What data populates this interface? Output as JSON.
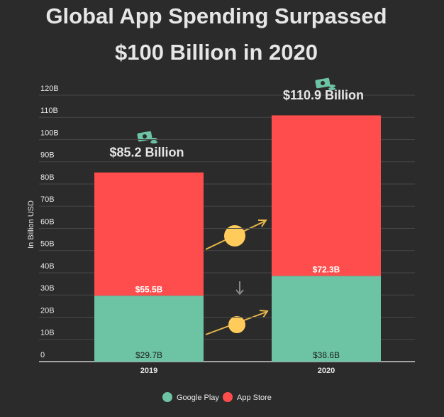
{
  "chart_data": {
    "type": "stacked_bar",
    "title": [
      "Global App Spending Surpassed",
      "$100 Billion in 2020"
    ],
    "y_label": "In Billion USD",
    "categories": [
      "2019",
      "2020"
    ],
    "series": [
      {
        "name": "Google Play",
        "color": "#6cc4a4",
        "values": [
          29.7,
          38.6
        ],
        "value_labels": [
          "$29.7B",
          "$38.6B"
        ]
      },
      {
        "name": "App Store",
        "color": "#ff4d4d",
        "values": [
          55.5,
          72.3
        ],
        "value_labels": [
          "$55.5B",
          "$72.3B"
        ]
      }
    ],
    "annotations": [
      "$85.2 Billion",
      "$110.9 Billion"
    ],
    "ylim": [
      0,
      120
    ],
    "yticks": [
      0,
      {
        "value": 10,
        "label": "10B"
      },
      {
        "value": 20,
        "label": "20B"
      },
      {
        "value": 30,
        "label": "30B"
      },
      {
        "value": 40,
        "label": "40B"
      },
      {
        "value": 50,
        "label": "50B"
      },
      {
        "value": 60,
        "label": "60B"
      },
      {
        "value": 70,
        "label": "70B"
      },
      {
        "value": 80,
        "label": "80B"
      },
      {
        "value": 90,
        "label": "90B"
      },
      {
        "value": 100,
        "label": "100B"
      },
      {
        "value": 110,
        "label": "110B"
      },
      {
        "value": 120,
        "label": "120B"
      }
    ],
    "grid": true
  }
}
